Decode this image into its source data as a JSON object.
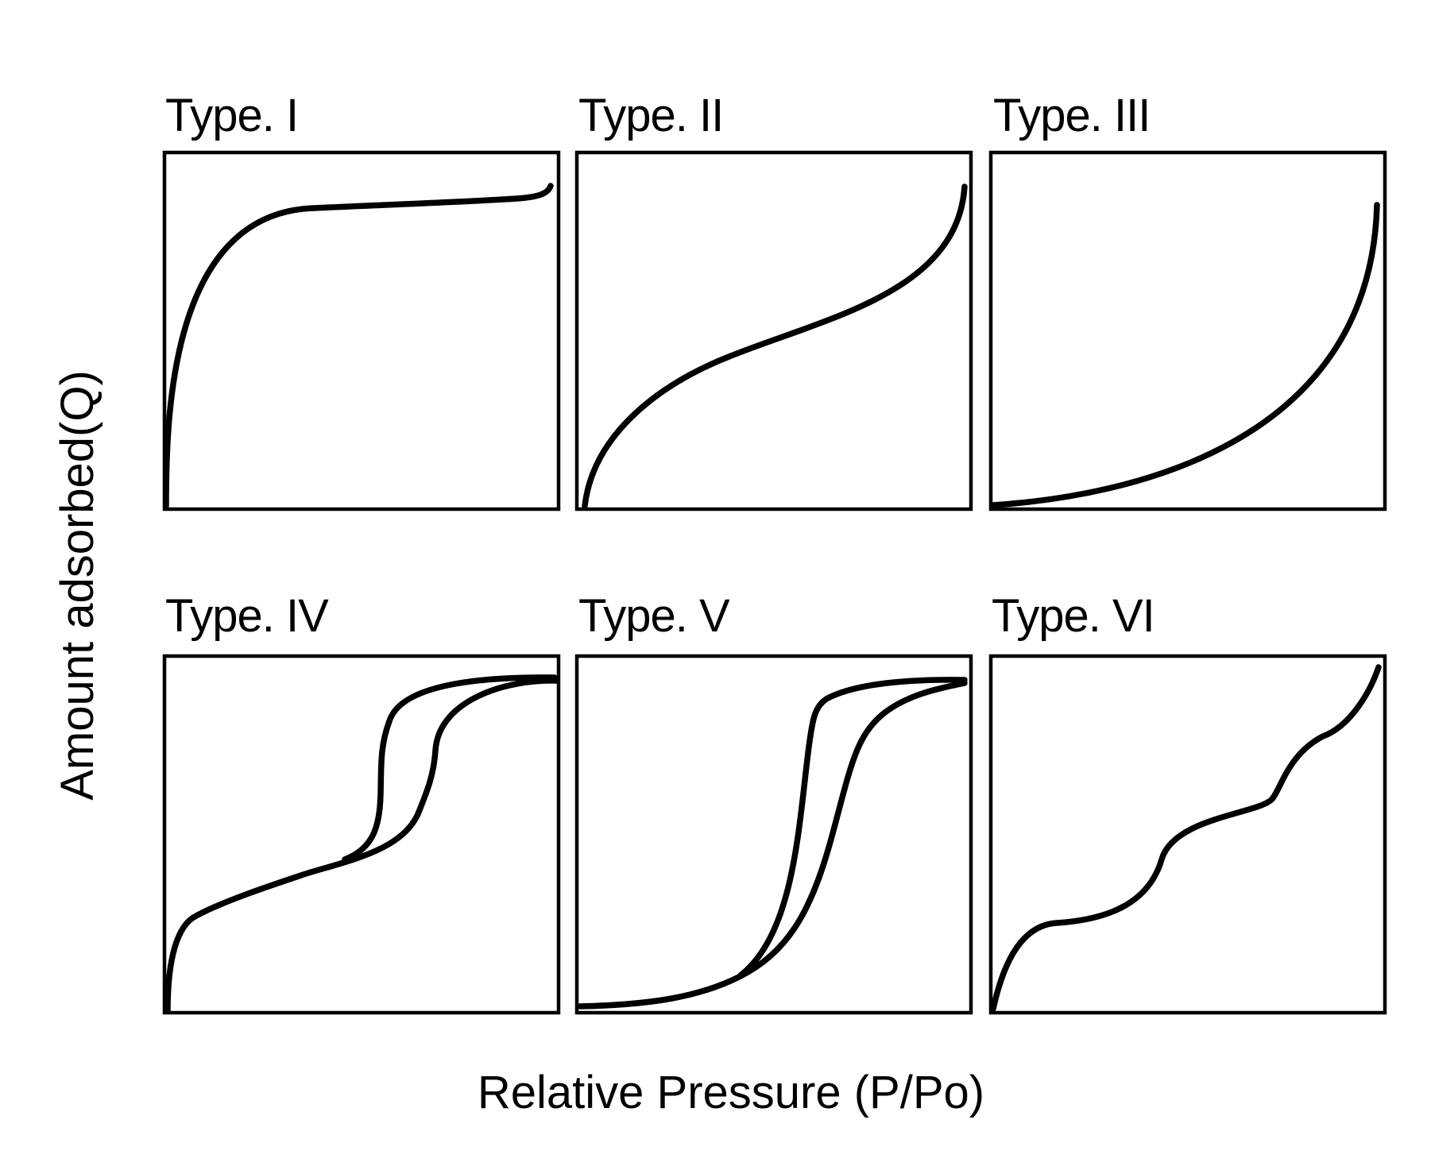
{
  "figure": {
    "y_axis_label": "Amount adsorbed(Q)",
    "x_axis_label": "Relative Pressure (P/Po)",
    "line_color": "#000000",
    "background_color": "#ffffff",
    "panels": [
      {
        "id": "type-1",
        "title": "Type. I",
        "shape": "langmuir-plateau"
      },
      {
        "id": "type-2",
        "title": "Type. II",
        "shape": "s-shaped"
      },
      {
        "id": "type-3",
        "title": "Type. III",
        "shape": "convex"
      },
      {
        "id": "type-4",
        "title": "Type. IV",
        "shape": "hysteresis-loop"
      },
      {
        "id": "type-5",
        "title": "Type. V",
        "shape": "hysteresis-loop-convex"
      },
      {
        "id": "type-6",
        "title": "Type. VI",
        "shape": "stepwise"
      }
    ]
  }
}
